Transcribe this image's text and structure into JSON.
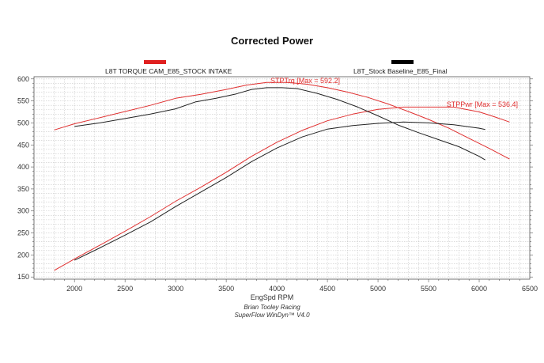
{
  "chart_data": {
    "type": "line",
    "title": "Corrected Power",
    "xlabel": "EngSpd RPM",
    "ylabel": "",
    "xlim": [
      1600,
      6500
    ],
    "ylim": [
      145,
      605
    ],
    "xticks": [
      2000,
      2500,
      3000,
      3500,
      4000,
      4500,
      5000,
      5500,
      6000,
      6500
    ],
    "yticks": [
      150,
      200,
      250,
      300,
      350,
      400,
      450,
      500,
      550,
      600
    ],
    "grid": true,
    "legend": [
      {
        "label": "L8T TORQUE CAM_E85_STOCK INTAKE",
        "color": "#e02020"
      },
      {
        "label": "L8T_Stock Baseline_E85_Final",
        "color": "#000000"
      }
    ],
    "series": [
      {
        "name": "L8T TORQUE CAM_E85_STOCK INTAKE STPTrq",
        "color": "#e03030",
        "x": [
          1800,
          2000,
          2250,
          2500,
          2750,
          3000,
          3250,
          3500,
          3700,
          3900,
          4100,
          4300,
          4500,
          4700,
          4900,
          5100,
          5300,
          5500,
          5700,
          5900,
          6100,
          6300
        ],
        "values": [
          484,
          498,
          512,
          526,
          540,
          556,
          565,
          576,
          586,
          592,
          592,
          588,
          580,
          570,
          558,
          543,
          526,
          508,
          488,
          465,
          442,
          418
        ]
      },
      {
        "name": "L8T TORQUE CAM_E85_STOCK INTAKE STPPwr",
        "color": "#e03030",
        "x": [
          1800,
          2000,
          2250,
          2500,
          2750,
          3000,
          3250,
          3500,
          3750,
          4000,
          4250,
          4500,
          4750,
          5000,
          5250,
          5500,
          5750,
          6000,
          6150,
          6300
        ],
        "values": [
          165,
          191,
          222,
          254,
          287,
          322,
          354,
          388,
          424,
          456,
          483,
          505,
          520,
          531,
          536,
          536,
          536,
          525,
          514,
          502
        ]
      },
      {
        "name": "L8T_Stock Baseline_E85_Final Torque",
        "color": "#222222",
        "x": [
          2000,
          2250,
          2500,
          2750,
          3000,
          3200,
          3400,
          3600,
          3750,
          3900,
          4050,
          4200,
          4400,
          4600,
          4800,
          5000,
          5200,
          5400,
          5600,
          5800,
          6000,
          6060
        ],
        "values": [
          492,
          500,
          510,
          520,
          532,
          548,
          556,
          566,
          576,
          580,
          580,
          578,
          567,
          553,
          536,
          516,
          495,
          478,
          462,
          446,
          424,
          416
        ]
      },
      {
        "name": "L8T_Stock Baseline_E85_Final Power",
        "color": "#222222",
        "x": [
          2000,
          2250,
          2500,
          2750,
          3000,
          3250,
          3500,
          3750,
          4000,
          4250,
          4500,
          4750,
          5000,
          5250,
          5500,
          5750,
          6000,
          6060
        ],
        "values": [
          188,
          216,
          245,
          275,
          310,
          343,
          376,
          412,
          443,
          468,
          486,
          494,
          499,
          502,
          500,
          496,
          488,
          485
        ]
      }
    ],
    "annotations": [
      {
        "text": "STPTrq [Max = 592.2]",
        "color": "#e03030"
      },
      {
        "text": "STPPwr [Max = 536.4]",
        "color": "#e03030"
      }
    ],
    "footer": [
      "Brian Tooley Racing",
      "SuperFlow WinDyn™  V4.0"
    ]
  }
}
